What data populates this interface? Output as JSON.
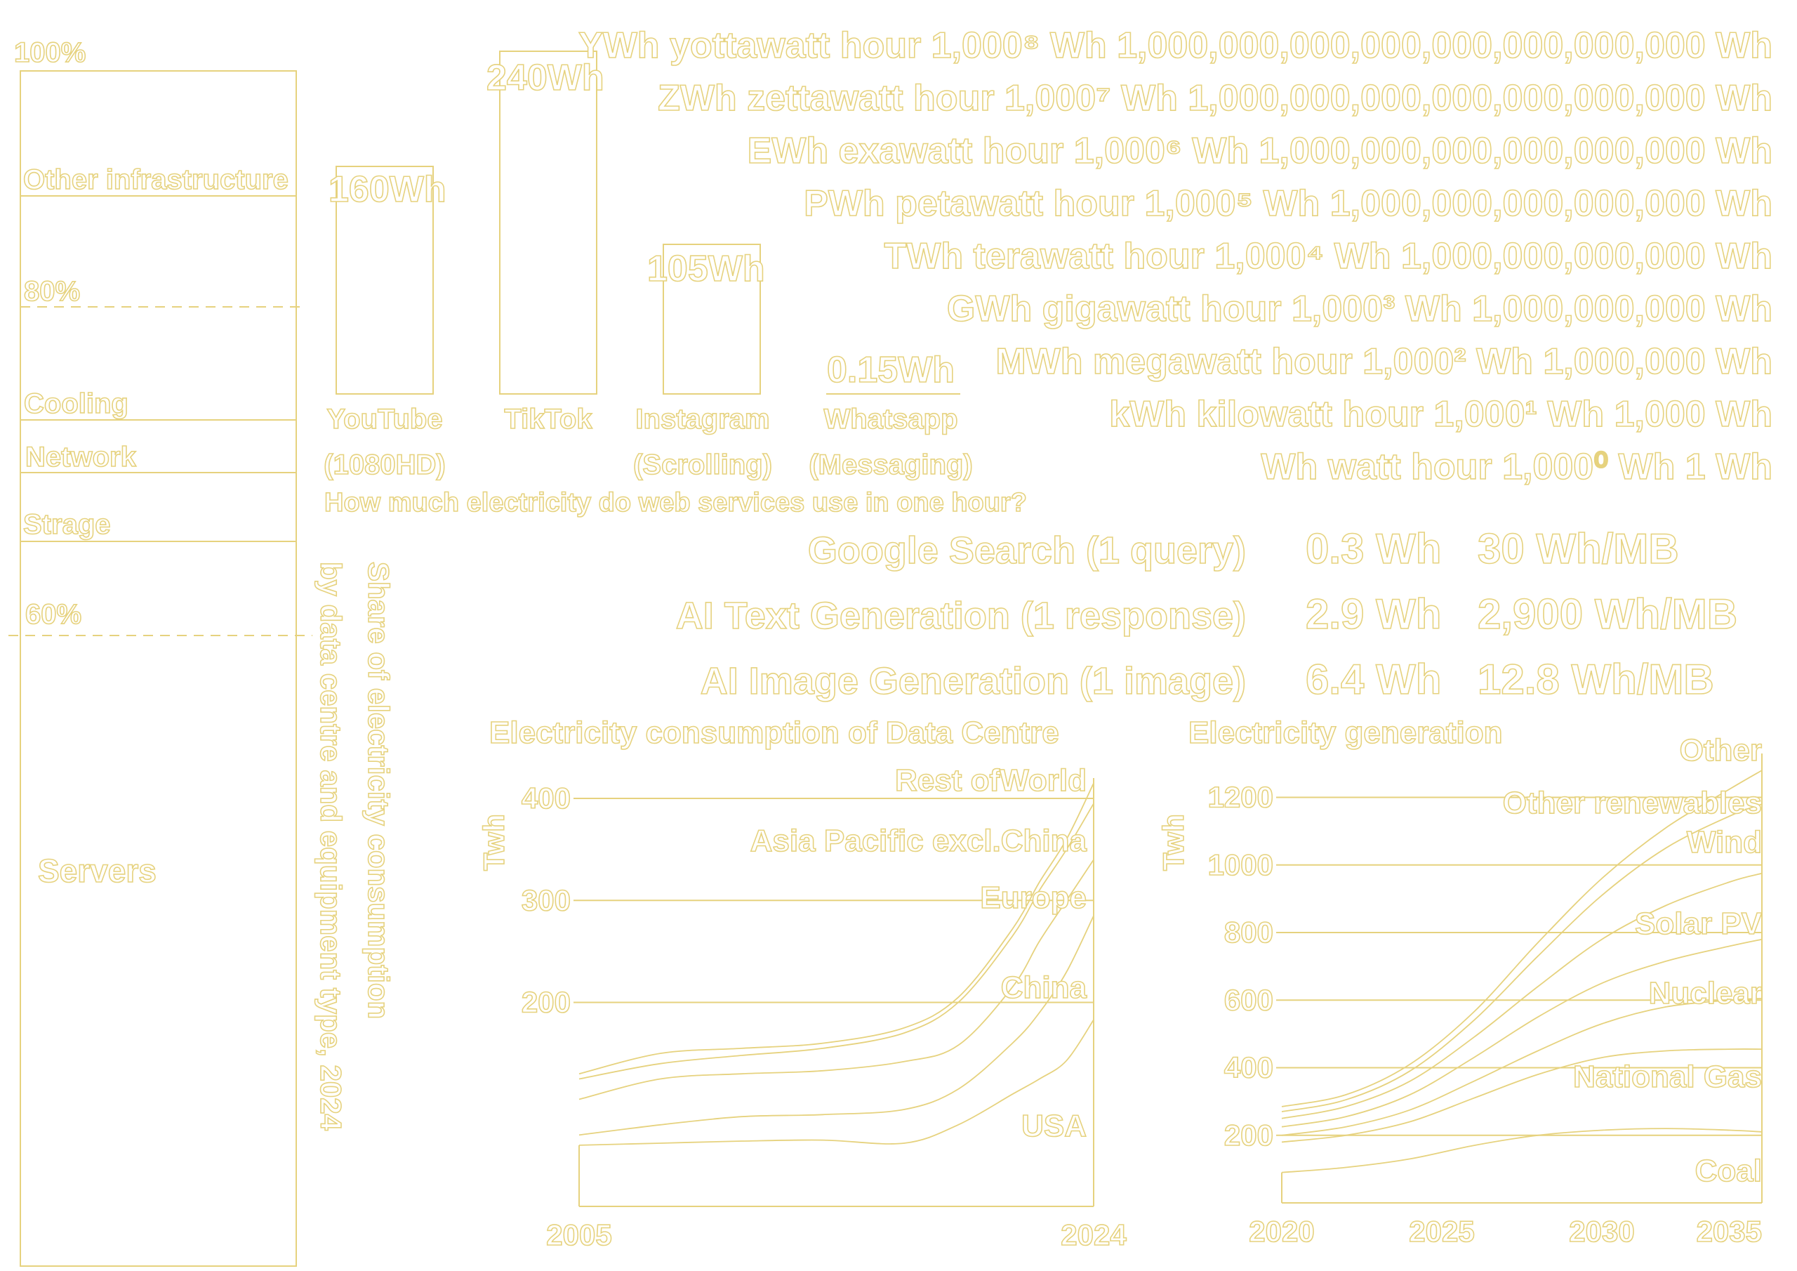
{
  "palette": {
    "background": "#ffffff",
    "stroke": "#e6d27e"
  },
  "share_chart": {
    "title_line1": "Share of electricity consumption",
    "title_line2": "by data centre and equipment type, 2024",
    "pct_labels": [
      "100%",
      "80%",
      "60%"
    ],
    "segments": [
      {
        "label": "Other infrastructure"
      },
      {
        "label": "Cooling"
      },
      {
        "label": "Network"
      },
      {
        "label": "Strage"
      },
      {
        "label": "Servers"
      }
    ]
  },
  "services_chart": {
    "title": "How much electricity do web services use in one hour?",
    "bars": [
      {
        "value_label": "160Wh",
        "name": "YouTube",
        "detail": "(1080HD)",
        "value": 160
      },
      {
        "value_label": "240Wh",
        "name": "TikTok",
        "detail": "",
        "value": 240
      },
      {
        "value_label": "105Wh",
        "name": "Instagram",
        "detail": "(Scrolling)",
        "value": 105
      },
      {
        "value_label": "0.15Wh",
        "name": "Whatsapp",
        "detail": "(Messaging)",
        "value": 0.15
      }
    ]
  },
  "units_table": [
    "YWh yottawatt hour 1,000⁸ Wh 1,000,000,000,000,000,000,000,000 Wh",
    "ZWh zettawatt hour 1,000⁷ Wh 1,000,000,000,000,000,000,000 Wh",
    "EWh exawatt hour 1,000⁶ Wh 1,000,000,000,000,000,000 Wh",
    "PWh petawatt hour 1,000⁵ Wh 1,000,000,000,000,000 Wh",
    "TWh terawatt hour 1,000⁴ Wh 1,000,000,000,000 Wh",
    "GWh gigawatt hour 1,000³ Wh 1,000,000,000 Wh",
    "MWh megawatt hour 1,000² Wh 1,000,000 Wh",
    "kWh kilowatt hour 1,000¹ Wh 1,000 Wh",
    "Wh watt hour 1,000⁰ Wh 1 Wh"
  ],
  "task_table": [
    {
      "task": "Google Search (1 query)",
      "energy": "0.3 Wh",
      "per_mb": "30 Wh/MB"
    },
    {
      "task": "AI Text Generation (1 response)",
      "energy": "2.9 Wh",
      "per_mb": "2,900 Wh/MB"
    },
    {
      "task": "AI Image Generation (1 image)",
      "energy": "6.4 Wh",
      "per_mb": "12.8 Wh/MB"
    }
  ],
  "chart_data": [
    {
      "type": "area",
      "title": "Electricity consumption of Data Centre",
      "ylabel": "Twh",
      "xlabel": "",
      "x_tick_labels": [
        "2005",
        "2024"
      ],
      "y_tick_labels": [
        "400",
        "300",
        "200"
      ],
      "y_ticks": [
        400,
        300,
        200
      ],
      "xlim": [
        2005,
        2024
      ],
      "ylim": [
        0,
        420
      ],
      "x": [
        2005,
        2008,
        2011,
        2014,
        2017,
        2019,
        2021,
        2022,
        2023,
        2024
      ],
      "series": [
        {
          "name": "USA",
          "values": [
            60,
            62,
            64,
            65,
            62,
            80,
            110,
            125,
            143,
            183
          ]
        },
        {
          "name": "China",
          "values": [
            70,
            80,
            88,
            90,
            95,
            115,
            160,
            190,
            230,
            285
          ]
        },
        {
          "name": "Europe",
          "values": [
            105,
            125,
            130,
            133,
            142,
            158,
            215,
            260,
            300,
            340
          ]
        },
        {
          "name": "Asia Pacific excl.China",
          "values": [
            125,
            140,
            148,
            155,
            170,
            200,
            265,
            310,
            350,
            395
          ]
        },
        {
          "name": "Rest ofWorld",
          "values": [
            130,
            150,
            155,
            160,
            175,
            205,
            272,
            318,
            360,
            415
          ]
        }
      ]
    },
    {
      "type": "area",
      "title": "Electricity generation",
      "ylabel": "Twh",
      "xlabel": "",
      "x_tick_labels": [
        "2020",
        "2025",
        "2030",
        "2035"
      ],
      "y_tick_labels": [
        "1200",
        "1000",
        "800",
        "600",
        "400",
        "200"
      ],
      "y_ticks": [
        1200,
        1000,
        800,
        600,
        400,
        200
      ],
      "xlim": [
        2020,
        2035
      ],
      "ylim": [
        0,
        1330
      ],
      "x": [
        2020,
        2022,
        2024,
        2026,
        2028,
        2030,
        2032,
        2034,
        2035
      ],
      "series": [
        {
          "name": "Coal",
          "values": [
            90,
            105,
            130,
            170,
            200,
            215,
            220,
            215,
            210
          ]
        },
        {
          "name": "National Gas",
          "values": [
            180,
            200,
            240,
            310,
            380,
            430,
            450,
            455,
            455
          ]
        },
        {
          "name": "Nuclear",
          "values": [
            200,
            225,
            275,
            360,
            450,
            530,
            580,
            600,
            605
          ]
        },
        {
          "name": "Solar PV",
          "values": [
            225,
            255,
            320,
            430,
            550,
            650,
            715,
            760,
            780
          ]
        },
        {
          "name": "Wind",
          "values": [
            250,
            285,
            360,
            490,
            640,
            780,
            880,
            950,
            975
          ]
        },
        {
          "name": "Other renewables",
          "values": [
            270,
            305,
            390,
            540,
            730,
            910,
            1050,
            1145,
            1180
          ]
        },
        {
          "name": "Other",
          "values": [
            285,
            320,
            410,
            565,
            770,
            960,
            1110,
            1225,
            1280
          ]
        }
      ]
    }
  ]
}
